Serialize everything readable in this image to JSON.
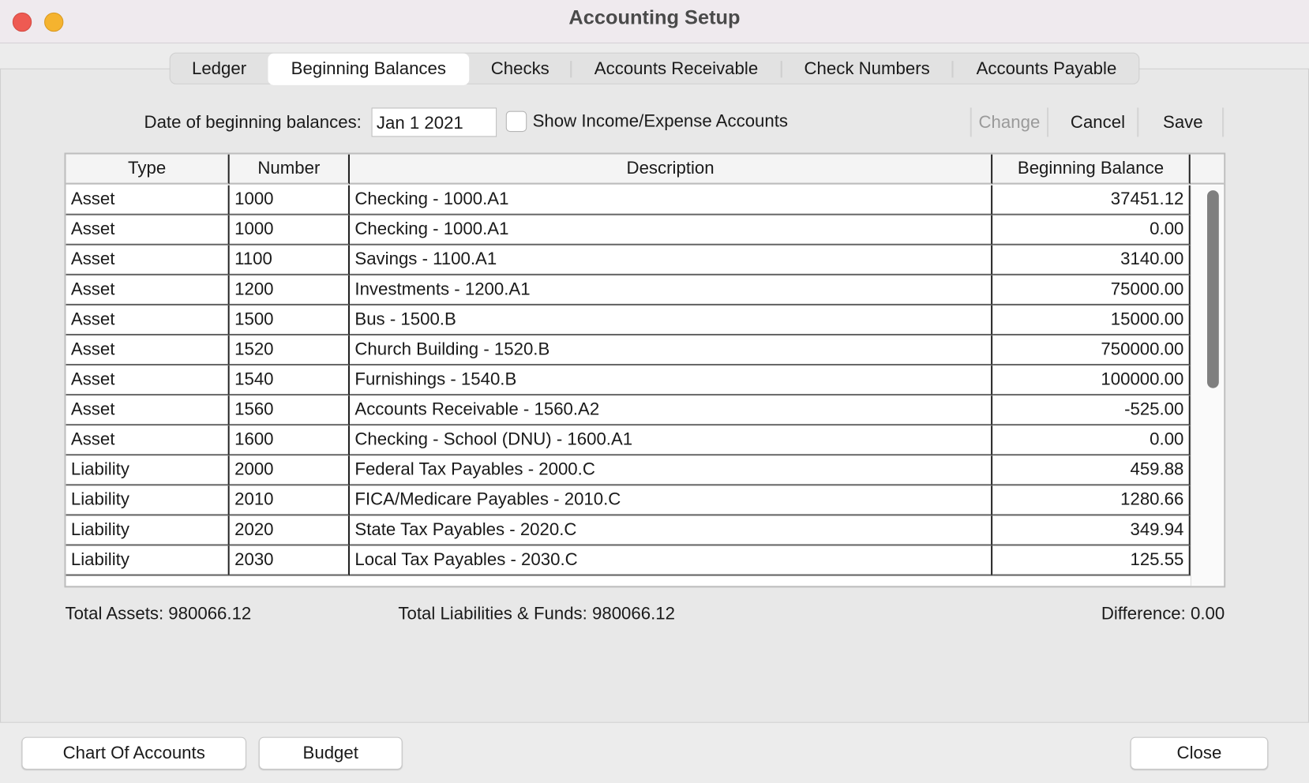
{
  "window": {
    "title": "Accounting Setup"
  },
  "tabs": [
    "Ledger",
    "Beginning Balances",
    "Checks",
    "Accounts Receivable",
    "Check Numbers",
    "Accounts Payable"
  ],
  "form": {
    "date_label": "Date of beginning balances:",
    "date_value": "Jan 1 2021",
    "checkbox_label": "Show Income/Expense Accounts",
    "buttons": [
      "Change",
      "Cancel",
      "Save"
    ]
  },
  "table": {
    "columns": [
      "Type",
      "Number",
      "Description",
      "Beginning Balance"
    ],
    "rows": [
      [
        "Asset",
        "1000",
        "Checking - 1000.A1",
        "37451.12"
      ],
      [
        "Asset",
        "1000",
        "Checking - 1000.A1",
        "0.00"
      ],
      [
        "Asset",
        "1100",
        "Savings - 1100.A1",
        "3140.00"
      ],
      [
        "Asset",
        "1200",
        "Investments - 1200.A1",
        "75000.00"
      ],
      [
        "Asset",
        "1500",
        "Bus - 1500.B",
        "15000.00"
      ],
      [
        "Asset",
        "1520",
        "Church Building - 1520.B",
        "750000.00"
      ],
      [
        "Asset",
        "1540",
        "Furnishings - 1540.B",
        "100000.00"
      ],
      [
        "Asset",
        "1560",
        "Accounts Receivable - 1560.A2",
        "-525.00"
      ],
      [
        "Asset",
        "1600",
        "Checking - School (DNU) - 1600.A1",
        "0.00"
      ],
      [
        "Liability",
        "2000",
        "Federal Tax Payables - 2000.C",
        "459.88"
      ],
      [
        "Liability",
        "2010",
        "FICA/Medicare Payables - 2010.C",
        "1280.66"
      ],
      [
        "Liability",
        "2020",
        "State Tax Payables - 2020.C",
        "349.94"
      ],
      [
        "Liability",
        "2030",
        "Local Tax Payables - 2030.C",
        "125.55"
      ]
    ]
  },
  "totals": {
    "assets": "Total Assets: 980066.12",
    "liabilities": "Total Liabilities & Funds: 980066.12",
    "difference": "Difference: 0.00"
  },
  "footer_buttons": [
    "Chart Of Accounts",
    "Budget",
    "Close"
  ]
}
